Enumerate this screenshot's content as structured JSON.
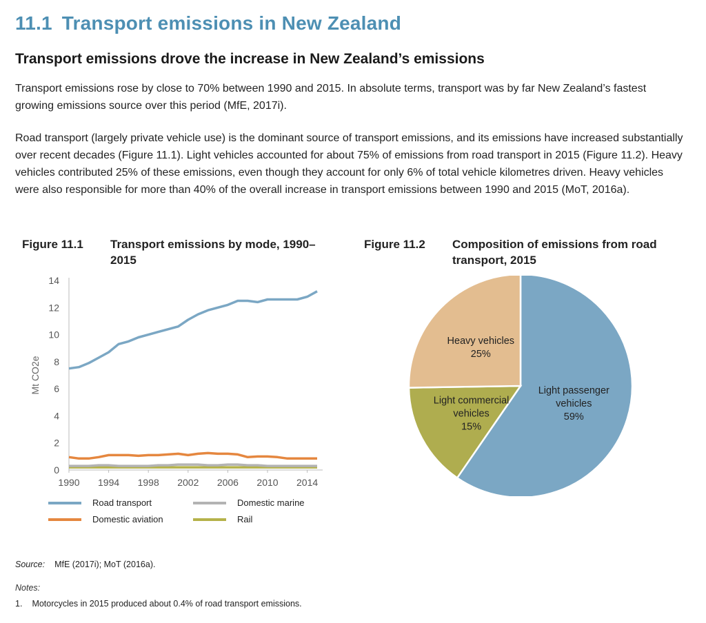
{
  "section": {
    "number": "11.1",
    "title": "Transport emissions in New Zealand"
  },
  "subheading": "Transport emissions drove the increase in New Zealand’s emissions",
  "paragraphs": [
    "Transport emissions rose by close to 70% between 1990 and 2015. In absolute terms, transport was by far New Zealand’s fastest growing emissions source over this period (MfE, 2017i).",
    "Road transport (largely private vehicle use) is the dominant source of transport emissions, and its emissions have increased substantially over recent decades (Figure 11.1). Light vehicles accounted for about 75% of emissions from road transport in 2015 (Figure 11.2). Heavy vehicles contributed 25% of these emissions, even though they account for only 6% of total vehicle kilometres driven. Heavy vehicles were also responsible for more than 40% of the overall increase in transport emissions between 1990 and 2015 (MoT, 2016a)."
  ],
  "figure1": {
    "label": "Figure 11.1",
    "title": "Transport emissions by mode, 1990–2015"
  },
  "figure2": {
    "label": "Figure 11.2",
    "title": "Composition of emissions from road transport, 2015"
  },
  "chart_data": [
    {
      "type": "line",
      "ylabel": "Mt CO2e",
      "ylim": [
        0,
        14
      ],
      "yticks": [
        0,
        2,
        4,
        6,
        8,
        10,
        12,
        14
      ],
      "xticks": [
        1990,
        1994,
        1998,
        2002,
        2006,
        2010,
        2014
      ],
      "x": [
        1990,
        1991,
        1992,
        1993,
        1994,
        1995,
        1996,
        1997,
        1998,
        1999,
        2000,
        2001,
        2002,
        2003,
        2004,
        2005,
        2006,
        2007,
        2008,
        2009,
        2010,
        2011,
        2012,
        2013,
        2014,
        2015
      ],
      "grid": false,
      "legend": "bottom",
      "series": [
        {
          "name": "Road transport",
          "color": "#7ba7c4",
          "values": [
            7.5,
            7.6,
            7.9,
            8.3,
            8.7,
            9.3,
            9.5,
            9.8,
            10.0,
            10.2,
            10.4,
            10.6,
            11.1,
            11.5,
            11.8,
            12.0,
            12.2,
            12.5,
            12.5,
            12.4,
            12.6,
            12.6,
            12.6,
            12.6,
            12.8,
            13.2
          ]
        },
        {
          "name": "Domestic aviation",
          "color": "#e5873f",
          "values": [
            0.95,
            0.85,
            0.85,
            0.95,
            1.1,
            1.1,
            1.1,
            1.05,
            1.1,
            1.1,
            1.15,
            1.2,
            1.1,
            1.2,
            1.25,
            1.2,
            1.2,
            1.15,
            0.95,
            1.0,
            1.0,
            0.95,
            0.85,
            0.85,
            0.85,
            0.85
          ]
        },
        {
          "name": "Domestic marine",
          "color": "#b3b3b3",
          "values": [
            0.3,
            0.3,
            0.3,
            0.35,
            0.35,
            0.3,
            0.3,
            0.3,
            0.3,
            0.35,
            0.35,
            0.4,
            0.4,
            0.4,
            0.35,
            0.35,
            0.4,
            0.4,
            0.35,
            0.35,
            0.3,
            0.3,
            0.3,
            0.3,
            0.3,
            0.3
          ]
        },
        {
          "name": "Rail",
          "color": "#b5b24a",
          "values": [
            0.2,
            0.2,
            0.2,
            0.2,
            0.2,
            0.2,
            0.2,
            0.2,
            0.2,
            0.2,
            0.2,
            0.2,
            0.2,
            0.2,
            0.2,
            0.2,
            0.2,
            0.2,
            0.2,
            0.2,
            0.2,
            0.2,
            0.2,
            0.2,
            0.2,
            0.2
          ]
        }
      ]
    },
    {
      "type": "pie",
      "slices": [
        {
          "name": "Light passenger vehicles",
          "label_lines": [
            "Light passenger",
            "vehicles",
            "59%"
          ],
          "value": 59,
          "color": "#7ba7c4"
        },
        {
          "name": "Light commercial vehicles",
          "label_lines": [
            "Light commercial",
            "vehicles",
            "15%"
          ],
          "value": 15,
          "color": "#afad4f"
        },
        {
          "name": "Heavy vehicles",
          "label_lines": [
            "Heavy vehicles",
            "25%"
          ],
          "value": 25,
          "color": "#e3bd90"
        }
      ]
    }
  ],
  "legend_items": [
    "Road transport",
    "Domestic marine",
    "Domestic aviation",
    "Rail"
  ],
  "source": {
    "label": "Source:",
    "text": "MfE (2017i); MoT (2016a)."
  },
  "notes": {
    "label": "Notes:",
    "items": [
      {
        "num": "1.",
        "text": "Motorcycles in 2015 produced about 0.4% of road transport emissions."
      }
    ]
  }
}
